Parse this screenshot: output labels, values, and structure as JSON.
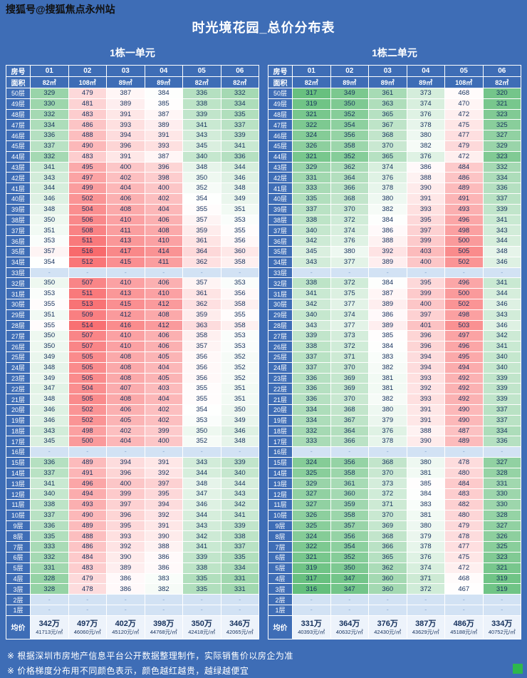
{
  "watermark": "搜狐号@搜狐焦点永州站",
  "title": "时光境花园_总价分布表",
  "labels": {
    "room": "房号",
    "area": "面积",
    "floor_suffix": "层",
    "average": "均价",
    "empty_placeholder": "-"
  },
  "colors": {
    "background": "#3e6db6",
    "header_bg": "#3e6db6",
    "empty_cell_bg": "#d2e2f4",
    "average_row_bg": "#edf3fb",
    "cell_text": "#15305c",
    "note_text": "#ffffff",
    "logo_green": "#2eb84c",
    "watermark_text": "#111111"
  },
  "heat_scale": {
    "low_color": "#63be7b",
    "mid_color": "#ffffff",
    "high_color": "#f8696b",
    "min_unit_price": 38500,
    "mid_unit_price": 43200,
    "max_unit_price": 47800,
    "legend": "颜色越红越贵，越绿越便宜"
  },
  "floors": [
    50,
    49,
    48,
    47,
    46,
    45,
    44,
    43,
    42,
    41,
    40,
    39,
    38,
    37,
    36,
    35,
    34,
    33,
    32,
    31,
    30,
    29,
    28,
    27,
    26,
    25,
    24,
    23,
    22,
    21,
    20,
    19,
    18,
    17,
    16,
    15,
    14,
    13,
    12,
    11,
    10,
    9,
    8,
    7,
    6,
    5,
    4,
    3,
    2,
    1
  ],
  "tables": [
    {
      "name": "1栋一单元",
      "rooms": [
        "01",
        "02",
        "03",
        "04",
        "05",
        "06"
      ],
      "areas": [
        "82㎡",
        "108㎡",
        "89㎡",
        "89㎡",
        "82㎡",
        "82㎡"
      ],
      "area_values": [
        82,
        108,
        89,
        89,
        82,
        82
      ],
      "rows": [
        [
          329,
          479,
          387,
          384,
          336,
          332
        ],
        [
          330,
          481,
          389,
          385,
          338,
          334
        ],
        [
          332,
          483,
          391,
          387,
          339,
          335
        ],
        [
          334,
          486,
          393,
          389,
          341,
          337
        ],
        [
          336,
          488,
          394,
          391,
          343,
          339
        ],
        [
          337,
          490,
          396,
          393,
          345,
          341
        ],
        [
          332,
          483,
          391,
          387,
          340,
          336
        ],
        [
          341,
          495,
          400,
          396,
          348,
          344
        ],
        [
          343,
          497,
          402,
          398,
          350,
          346
        ],
        [
          344,
          499,
          404,
          400,
          352,
          348
        ],
        [
          346,
          502,
          406,
          402,
          354,
          349
        ],
        [
          348,
          504,
          408,
          404,
          355,
          351
        ],
        [
          350,
          506,
          410,
          406,
          357,
          353
        ],
        [
          351,
          508,
          411,
          408,
          359,
          355
        ],
        [
          353,
          511,
          413,
          410,
          361,
          356
        ],
        [
          357,
          516,
          417,
          414,
          364,
          360
        ],
        [
          354,
          512,
          415,
          411,
          362,
          358
        ],
        null,
        [
          350,
          507,
          410,
          406,
          357,
          353
        ],
        [
          353,
          511,
          413,
          410,
          361,
          356
        ],
        [
          355,
          513,
          415,
          412,
          362,
          358
        ],
        [
          351,
          509,
          412,
          408,
          359,
          355
        ],
        [
          355,
          514,
          416,
          412,
          363,
          358
        ],
        [
          350,
          507,
          410,
          406,
          358,
          353
        ],
        [
          350,
          507,
          410,
          406,
          357,
          353
        ],
        [
          349,
          505,
          408,
          405,
          356,
          352
        ],
        [
          348,
          505,
          408,
          404,
          356,
          352
        ],
        [
          349,
          505,
          408,
          405,
          356,
          352
        ],
        [
          347,
          504,
          407,
          403,
          355,
          351
        ],
        [
          348,
          505,
          408,
          404,
          355,
          351
        ],
        [
          346,
          502,
          406,
          402,
          354,
          350
        ],
        [
          346,
          502,
          405,
          402,
          353,
          349
        ],
        [
          343,
          498,
          402,
          399,
          350,
          346
        ],
        [
          345,
          500,
          404,
          400,
          352,
          348
        ],
        null,
        [
          336,
          489,
          394,
          391,
          343,
          339
        ],
        [
          337,
          491,
          396,
          392,
          344,
          340
        ],
        [
          341,
          496,
          400,
          397,
          348,
          344
        ],
        [
          340,
          494,
          399,
          395,
          347,
          343
        ],
        [
          338,
          493,
          397,
          394,
          346,
          342
        ],
        [
          337,
          490,
          396,
          392,
          344,
          341
        ],
        [
          336,
          489,
          395,
          391,
          343,
          339
        ],
        [
          335,
          488,
          393,
          390,
          342,
          338
        ],
        [
          333,
          486,
          392,
          388,
          341,
          337
        ],
        [
          332,
          484,
          390,
          386,
          339,
          335
        ],
        [
          331,
          483,
          389,
          386,
          338,
          334
        ],
        [
          328,
          479,
          386,
          383,
          335,
          331
        ],
        [
          328,
          478,
          386,
          382,
          335,
          331
        ],
        null,
        null
      ],
      "averages": [
        {
          "total": "342万",
          "unit": "41713元/㎡"
        },
        {
          "total": "497万",
          "unit": "46060元/㎡"
        },
        {
          "total": "402万",
          "unit": "45120元/㎡"
        },
        {
          "total": "398万",
          "unit": "44768元/㎡"
        },
        {
          "total": "350万",
          "unit": "42418元/㎡"
        },
        {
          "total": "346万",
          "unit": "42065元/㎡"
        }
      ]
    },
    {
      "name": "1栋二单元",
      "rooms": [
        "01",
        "02",
        "03",
        "04",
        "05",
        "06"
      ],
      "areas": [
        "82㎡",
        "89㎡",
        "89㎡",
        "89㎡",
        "108㎡",
        "82㎡"
      ],
      "area_values": [
        82,
        89,
        89,
        89,
        108,
        82
      ],
      "rows": [
        [
          317,
          349,
          361,
          373,
          468,
          320
        ],
        [
          319,
          350,
          363,
          374,
          470,
          321
        ],
        [
          321,
          352,
          365,
          376,
          472,
          323
        ],
        [
          322,
          354,
          367,
          378,
          475,
          325
        ],
        [
          324,
          356,
          368,
          380,
          477,
          327
        ],
        [
          326,
          358,
          370,
          382,
          479,
          329
        ],
        [
          321,
          352,
          365,
          376,
          472,
          323
        ],
        [
          329,
          362,
          374,
          386,
          484,
          332
        ],
        [
          331,
          364,
          376,
          388,
          486,
          334
        ],
        [
          333,
          366,
          378,
          390,
          489,
          336
        ],
        [
          335,
          368,
          380,
          391,
          491,
          337
        ],
        [
          337,
          370,
          382,
          393,
          493,
          339
        ],
        [
          338,
          372,
          384,
          395,
          496,
          341
        ],
        [
          340,
          374,
          386,
          397,
          498,
          343
        ],
        [
          342,
          376,
          388,
          399,
          500,
          344
        ],
        [
          345,
          380,
          392,
          403,
          505,
          348
        ],
        [
          343,
          377,
          389,
          400,
          502,
          346
        ],
        null,
        [
          338,
          372,
          384,
          395,
          496,
          341
        ],
        [
          341,
          375,
          387,
          399,
          500,
          344
        ],
        [
          342,
          377,
          389,
          400,
          502,
          346
        ],
        [
          340,
          374,
          386,
          397,
          498,
          343
        ],
        [
          343,
          377,
          389,
          401,
          503,
          346
        ],
        [
          339,
          373,
          385,
          396,
          497,
          342
        ],
        [
          338,
          372,
          384,
          396,
          496,
          341
        ],
        [
          337,
          371,
          383,
          394,
          495,
          340
        ],
        [
          337,
          370,
          382,
          394,
          494,
          340
        ],
        [
          336,
          369,
          381,
          393,
          492,
          339
        ],
        [
          336,
          369,
          381,
          392,
          492,
          339
        ],
        [
          336,
          370,
          382,
          393,
          492,
          339
        ],
        [
          334,
          368,
          380,
          391,
          490,
          337
        ],
        [
          334,
          367,
          379,
          391,
          490,
          337
        ],
        [
          332,
          364,
          376,
          388,
          487,
          334
        ],
        [
          333,
          366,
          378,
          390,
          489,
          336
        ],
        null,
        [
          324,
          356,
          368,
          380,
          478,
          327
        ],
        [
          325,
          358,
          370,
          381,
          480,
          328
        ],
        [
          329,
          361,
          373,
          385,
          484,
          331
        ],
        [
          327,
          360,
          372,
          384,
          483,
          330
        ],
        [
          327,
          359,
          371,
          383,
          482,
          330
        ],
        [
          326,
          358,
          370,
          381,
          480,
          328
        ],
        [
          325,
          357,
          369,
          380,
          479,
          327
        ],
        [
          324,
          356,
          368,
          379,
          478,
          326
        ],
        [
          322,
          354,
          366,
          378,
          477,
          325
        ],
        [
          321,
          352,
          365,
          376,
          475,
          323
        ],
        [
          319,
          350,
          362,
          374,
          472,
          321
        ],
        [
          317,
          347,
          360,
          371,
          468,
          319
        ],
        [
          316,
          347,
          360,
          372,
          467,
          319
        ],
        null,
        null
      ],
      "averages": [
        {
          "total": "331万",
          "unit": "40393元/㎡"
        },
        {
          "total": "364万",
          "unit": "40632元/㎡"
        },
        {
          "total": "376万",
          "unit": "42430元/㎡"
        },
        {
          "total": "387万",
          "unit": "43629元/㎡"
        },
        {
          "total": "486万",
          "unit": "45188元/㎡"
        },
        {
          "total": "334万",
          "unit": "40752元/㎡"
        }
      ]
    }
  ],
  "footnotes": [
    "※ 根据深圳市房地产信息平台公开数据整理制作，实际销售价以房企为准",
    "※ 价格梯度分布用不同颜色表示，颜色越红越贵，越绿越便宜"
  ]
}
